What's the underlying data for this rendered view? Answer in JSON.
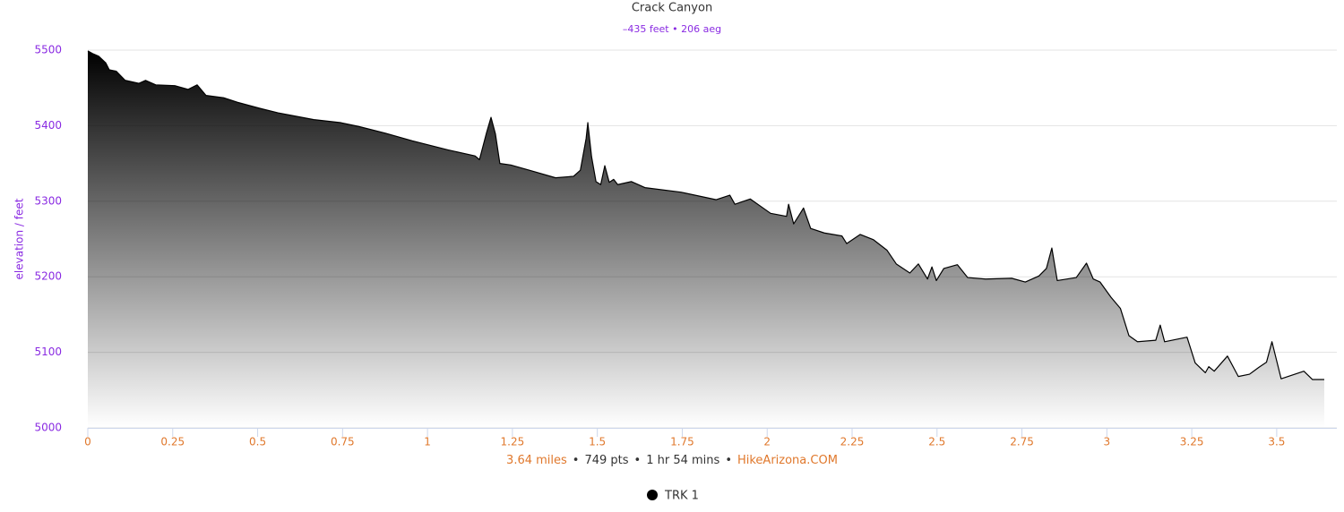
{
  "chart_data": {
    "type": "area",
    "title": "Crack Canyon",
    "subtitle": "–435 feet • 206 aeg",
    "y_label": "elevation / feet",
    "footer": [
      {
        "text": "3.64 miles",
        "color": "#e0782c"
      },
      {
        "text": "749 pts",
        "color": "#333333"
      },
      {
        "text": "1 hr 54 mins",
        "color": "#333333"
      },
      {
        "text": "HikeArizona.COM",
        "color": "#e0782c"
      }
    ],
    "footer_separator": "•",
    "xlim": [
      0,
      3.677
    ],
    "ylim": [
      5000,
      5500
    ],
    "xticks": [
      0,
      0.25,
      0.5,
      0.75,
      1,
      1.25,
      1.5,
      1.75,
      2,
      2.25,
      2.5,
      2.75,
      3,
      3.25,
      3.5
    ],
    "yticks": [
      5000,
      5100,
      5200,
      5300,
      5400,
      5500
    ],
    "grid": true,
    "x": [
      0,
      0.016,
      0.032,
      0.053,
      0.063,
      0.084,
      0.11,
      0.15,
      0.17,
      0.2,
      0.256,
      0.295,
      0.322,
      0.348,
      0.4,
      0.44,
      0.506,
      0.56,
      0.665,
      0.744,
      0.797,
      0.876,
      0.955,
      1.06,
      1.14,
      1.153,
      1.174,
      1.187,
      1.2,
      1.213,
      1.245,
      1.3,
      1.377,
      1.43,
      1.45,
      1.467,
      1.472,
      1.483,
      1.496,
      1.51,
      1.522,
      1.535,
      1.548,
      1.56,
      1.6,
      1.64,
      1.746,
      1.85,
      1.89,
      1.905,
      1.95,
      2.01,
      2.057,
      2.063,
      2.078,
      2.107,
      2.128,
      2.168,
      2.22,
      2.234,
      2.274,
      2.313,
      2.353,
      2.38,
      2.42,
      2.445,
      2.472,
      2.485,
      2.498,
      2.52,
      2.56,
      2.59,
      2.643,
      2.72,
      2.76,
      2.8,
      2.822,
      2.838,
      2.854,
      2.91,
      2.94,
      2.96,
      2.98,
      3.012,
      3.04,
      3.065,
      3.09,
      3.144,
      3.157,
      3.17,
      3.236,
      3.26,
      3.29,
      3.3,
      3.316,
      3.355,
      3.387,
      3.42,
      3.447,
      3.47,
      3.486,
      3.513,
      3.58,
      3.605,
      3.64
    ],
    "series": [
      {
        "name": "TRK 1",
        "color": "#000000",
        "values": [
          5499,
          5495,
          5492,
          5483,
          5474,
          5472,
          5460,
          5456,
          5460,
          5454,
          5453,
          5448,
          5454,
          5440,
          5437,
          5431,
          5423,
          5417,
          5408,
          5404,
          5399,
          5390,
          5380,
          5368,
          5360,
          5355,
          5391,
          5411,
          5389,
          5350,
          5348,
          5341,
          5331,
          5333,
          5341,
          5383,
          5404,
          5359,
          5326,
          5322,
          5347,
          5325,
          5329,
          5322,
          5326,
          5318,
          5312,
          5302,
          5308,
          5296,
          5303,
          5284,
          5280,
          5296,
          5270,
          5291,
          5264,
          5258,
          5254,
          5244,
          5256,
          5249,
          5235,
          5217,
          5205,
          5217,
          5197,
          5213,
          5195,
          5211,
          5216,
          5199,
          5197,
          5198,
          5193,
          5201,
          5211,
          5238,
          5195,
          5199,
          5218,
          5197,
          5193,
          5173,
          5158,
          5122,
          5114,
          5116,
          5136,
          5114,
          5120,
          5086,
          5073,
          5081,
          5075,
          5095,
          5068,
          5071,
          5080,
          5087,
          5114,
          5065,
          5075,
          5064,
          5064
        ]
      }
    ]
  }
}
